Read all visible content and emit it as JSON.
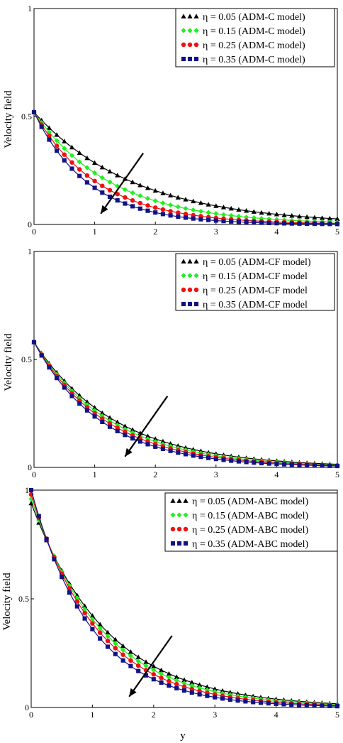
{
  "colors": {
    "eta005": "#000000",
    "eta015": "#22ee22",
    "eta025": "#ee1111",
    "eta035": "#111188",
    "arrow": "#000000",
    "axis": "#000000"
  },
  "xlabel": "y",
  "chart_data": [
    {
      "type": "line",
      "ylabel": "Velocity field",
      "xlim": [
        0,
        5
      ],
      "ylim": [
        0,
        1
      ],
      "xticks": [
        "0",
        "1",
        "2",
        "3",
        "4",
        "5"
      ],
      "yticks": [
        "0",
        "0.5",
        "1"
      ],
      "legend_position": "top-right",
      "arrow": {
        "from": [
          1.8,
          0.33
        ],
        "to": [
          1.1,
          0.05
        ]
      },
      "series": [
        {
          "name": "η = 0.05  (ADM-C model)",
          "marker": "triangle",
          "color_key": "eta005",
          "y0": 0.52,
          "decay": 0.6
        },
        {
          "name": "η = 0.15 (ADM-C model)",
          "marker": "diamond",
          "color_key": "eta015",
          "y0": 0.52,
          "decay": 0.78
        },
        {
          "name": "η = 0.25 (ADM-C model)",
          "marker": "circle",
          "color_key": "eta025",
          "y0": 0.52,
          "decay": 0.95
        },
        {
          "name": "η = 0.35 (ADM-C model)",
          "marker": "square",
          "color_key": "eta035",
          "y0": 0.52,
          "decay": 1.12
        }
      ]
    },
    {
      "type": "line",
      "ylabel": "Velocity field",
      "xlim": [
        0,
        5
      ],
      "ylim": [
        0,
        1
      ],
      "xticks": [
        "0",
        "1",
        "2",
        "3",
        "4",
        "5"
      ],
      "yticks": [
        "0",
        "0.5",
        "1"
      ],
      "legend_position": "top-right",
      "arrow": {
        "from": [
          2.2,
          0.33
        ],
        "to": [
          1.5,
          0.05
        ]
      },
      "series": [
        {
          "name": "η = 0.05 (ADM-CF model)",
          "marker": "triangle",
          "color_key": "eta005",
          "y0": 0.58,
          "decay": 0.74
        },
        {
          "name": "η = 0.15 (ADM-CF model",
          "marker": "diamond",
          "color_key": "eta015",
          "y0": 0.58,
          "decay": 0.79
        },
        {
          "name": "η = 0.25 (ADM-CF model",
          "marker": "circle",
          "color_key": "eta025",
          "y0": 0.58,
          "decay": 0.84
        },
        {
          "name": "η = 0.35 (ADM-CF model",
          "marker": "square",
          "color_key": "eta035",
          "y0": 0.58,
          "decay": 0.9
        }
      ]
    },
    {
      "type": "line",
      "ylabel": "Velocity field",
      "xlim": [
        0,
        5
      ],
      "ylim": [
        0,
        1
      ],
      "xticks": [
        "0",
        "1",
        "2",
        "3",
        "4",
        "5"
      ],
      "yticks": [
        "0",
        "0.5",
        "1"
      ],
      "legend_position": "top-right",
      "arrow": {
        "from": [
          2.3,
          0.33
        ],
        "to": [
          1.6,
          0.05
        ]
      },
      "series": [
        {
          "name": "η = 0.05 (ADM-ABC model)",
          "marker": "triangle",
          "color_key": "eta005",
          "y0": 0.94,
          "decay": 0.8
        },
        {
          "name": "η = 0.15 (ADM-ABC model)",
          "marker": "diamond",
          "color_key": "eta015",
          "y0": 0.96,
          "decay": 0.86
        },
        {
          "name": "η = 0.25 (ADM-ABC model)",
          "marker": "circle",
          "color_key": "eta025",
          "y0": 0.98,
          "decay": 0.93
        },
        {
          "name": "η = 0.35 (ADM-ABC model)",
          "marker": "square",
          "color_key": "eta035",
          "y0": 1.0,
          "decay": 1.02
        }
      ]
    }
  ]
}
